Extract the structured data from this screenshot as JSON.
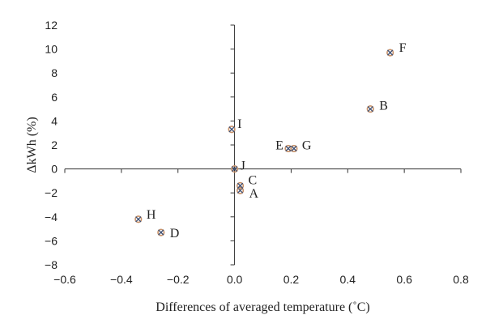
{
  "chart_data": {
    "type": "scatter",
    "title": "",
    "xlabel": "Differences of averaged temperature (˚C)",
    "ylabel": "ΔkWh (%)",
    "xlim": [
      -0.6,
      0.8
    ],
    "ylim": [
      -8,
      12
    ],
    "xticks": [
      -0.6,
      -0.4,
      -0.2,
      0.0,
      0.2,
      0.4,
      0.6,
      0.8
    ],
    "xtick_labels": [
      "−0.6",
      "−0.4",
      "−0.2",
      "0.0",
      "0.2",
      "0.4",
      "0.6",
      "0.8"
    ],
    "yticks": [
      -8,
      -6,
      -4,
      -2,
      0,
      2,
      4,
      6,
      8,
      10,
      12
    ],
    "ytick_labels": [
      "−8",
      "−6",
      "−4",
      "−2",
      "0",
      "2",
      "4",
      "6",
      "8",
      "10",
      "12"
    ],
    "grid": false,
    "legend": false,
    "marker_colors": {
      "circle": "#c8926a",
      "cross": "#3d4f73"
    },
    "points": [
      {
        "label": "A",
        "x": 0.02,
        "y": -1.8
      },
      {
        "label": "B",
        "x": 0.48,
        "y": 5.0
      },
      {
        "label": "C",
        "x": 0.02,
        "y": -1.4
      },
      {
        "label": "D",
        "x": -0.26,
        "y": -5.3
      },
      {
        "label": "E",
        "x": 0.19,
        "y": 1.7
      },
      {
        "label": "F",
        "x": 0.55,
        "y": 9.7
      },
      {
        "label": "G",
        "x": 0.21,
        "y": 1.7
      },
      {
        "label": "H",
        "x": -0.34,
        "y": -4.2
      },
      {
        "label": "I",
        "x": -0.01,
        "y": 3.3
      },
      {
        "label": "J",
        "x": 0.0,
        "y": 0.0
      }
    ]
  }
}
